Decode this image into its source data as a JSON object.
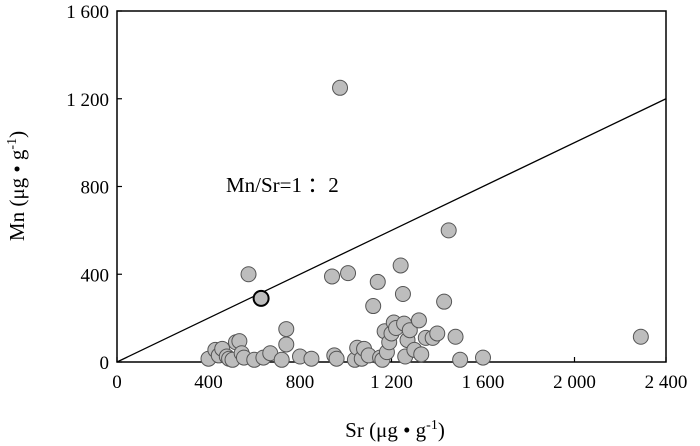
{
  "chart_data": {
    "type": "scatter",
    "title": "",
    "xlabel_main": "Sr (μg • g",
    "xlabel_sup": "-1",
    "xlabel_end": ")",
    "ylabel_main": "Mn (μg • g",
    "ylabel_sup": "-1",
    "ylabel_end": ")",
    "xlim": [
      0,
      2400
    ],
    "ylim": [
      0,
      1600
    ],
    "x_ticks": [
      0,
      400,
      800,
      1200,
      1600,
      2000,
      2400
    ],
    "x_tick_labels": [
      "0",
      "400",
      "800",
      "1 200",
      "1 600",
      "2 000",
      "2 400"
    ],
    "y_ticks": [
      0,
      400,
      800,
      1200,
      1600
    ],
    "y_tick_labels": [
      "0",
      "400",
      "800",
      "1 200",
      "1 600"
    ],
    "grid": false,
    "reference_line": {
      "x": [
        0,
        2400
      ],
      "y": [
        0,
        1200
      ]
    },
    "annotation": "Mn/Sr=1 ：2",
    "point_color": "#bdbdbd",
    "highlighted_point": {
      "x": 630,
      "y": 290
    },
    "points": [
      [
        400,
        15
      ],
      [
        430,
        55
      ],
      [
        445,
        30
      ],
      [
        460,
        60
      ],
      [
        480,
        25
      ],
      [
        490,
        15
      ],
      [
        505,
        10
      ],
      [
        520,
        90
      ],
      [
        535,
        95
      ],
      [
        545,
        40
      ],
      [
        555,
        20
      ],
      [
        575,
        400
      ],
      [
        600,
        10
      ],
      [
        640,
        20
      ],
      [
        670,
        40
      ],
      [
        720,
        10
      ],
      [
        740,
        80
      ],
      [
        740,
        150
      ],
      [
        800,
        25
      ],
      [
        850,
        15
      ],
      [
        940,
        390
      ],
      [
        950,
        30
      ],
      [
        960,
        15
      ],
      [
        975,
        1250
      ],
      [
        1010,
        405
      ],
      [
        1040,
        10
      ],
      [
        1050,
        65
      ],
      [
        1070,
        15
      ],
      [
        1080,
        60
      ],
      [
        1100,
        30
      ],
      [
        1120,
        255
      ],
      [
        1140,
        365
      ],
      [
        1150,
        20
      ],
      [
        1160,
        10
      ],
      [
        1170,
        140
      ],
      [
        1180,
        45
      ],
      [
        1190,
        90
      ],
      [
        1200,
        130
      ],
      [
        1210,
        180
      ],
      [
        1220,
        155
      ],
      [
        1240,
        440
      ],
      [
        1250,
        310
      ],
      [
        1255,
        175
      ],
      [
        1260,
        25
      ],
      [
        1270,
        100
      ],
      [
        1280,
        145
      ],
      [
        1300,
        55
      ],
      [
        1320,
        190
      ],
      [
        1330,
        35
      ],
      [
        1350,
        110
      ],
      [
        1380,
        110
      ],
      [
        1400,
        130
      ],
      [
        1430,
        275
      ],
      [
        1450,
        600
      ],
      [
        1480,
        115
      ],
      [
        1500,
        10
      ],
      [
        1600,
        20
      ],
      [
        2290,
        115
      ]
    ]
  }
}
